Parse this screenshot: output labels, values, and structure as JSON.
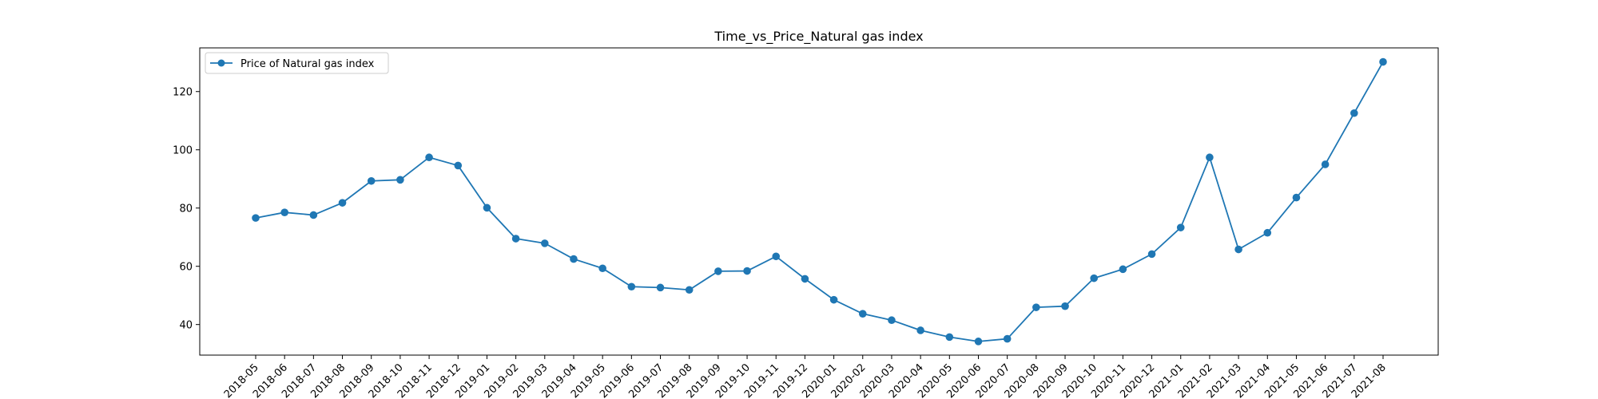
{
  "chart_data": {
    "type": "line",
    "title": "Time_vs_Price_Natural gas index",
    "xlabel": "",
    "ylabel": "",
    "ylim": [
      29.5,
      135.0
    ],
    "yticks": [
      40,
      60,
      80,
      100,
      120
    ],
    "grid": false,
    "legend_position": "top-left",
    "colors": {
      "series": "#1f77b4",
      "axes": "#000000",
      "background": "#ffffff"
    },
    "categories": [
      "2018-05",
      "2018-06",
      "2018-07",
      "2018-08",
      "2018-09",
      "2018-10",
      "2018-11",
      "2018-12",
      "2019-01",
      "2019-02",
      "2019-03",
      "2019-04",
      "2019-05",
      "2019-06",
      "2019-07",
      "2019-08",
      "2019-09",
      "2019-10",
      "2019-11",
      "2019-12",
      "2020-01",
      "2020-02",
      "2020-03",
      "2020-04",
      "2020-05",
      "2020-06",
      "2020-07",
      "2020-08",
      "2020-09",
      "2020-10",
      "2020-11",
      "2020-12",
      "2021-01",
      "2021-02",
      "2021-03",
      "2021-04",
      "2021-05",
      "2021-06",
      "2021-07",
      "2021-08"
    ],
    "series": [
      {
        "name": "Price of Natural gas index",
        "values": [
          76.6,
          78.5,
          77.6,
          81.8,
          89.3,
          89.7,
          97.4,
          94.6,
          80.1,
          69.5,
          67.9,
          62.5,
          59.3,
          53.0,
          52.7,
          51.9,
          58.3,
          58.4,
          63.4,
          55.7,
          48.5,
          43.7,
          41.5,
          38.0,
          35.7,
          34.2,
          35.1,
          45.9,
          46.3,
          55.9,
          59.0,
          64.2,
          73.3,
          97.4,
          65.8,
          71.5,
          83.6,
          95.0,
          112.6,
          130.2
        ]
      }
    ]
  }
}
